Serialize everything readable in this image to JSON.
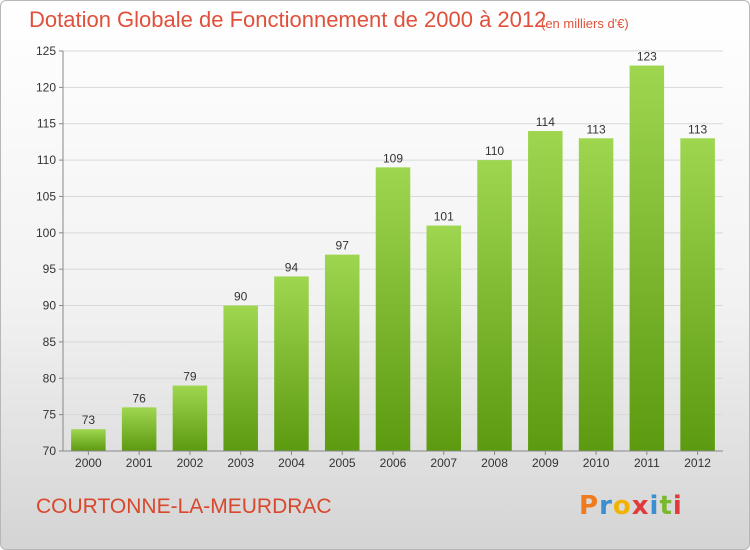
{
  "header": {
    "title": "Dotation Globale de Fonctionnement de 2000 à 2012",
    "subtitle": "(en milliers d'€)"
  },
  "footer": {
    "commune": "COURTONNE-LA-MEURDRAC",
    "logo_letters": [
      "P",
      "r",
      "o",
      "x",
      "i",
      "t",
      "i"
    ],
    "logo_colors": [
      "#f07a1e",
      "#3a8fd0",
      "#f0b400",
      "#e03a3a",
      "#3a8fd0",
      "#7ab82e",
      "#e03a3a"
    ]
  },
  "colors": {
    "bar_light": "#9fd650",
    "bar_dark": "#5c9a10",
    "grid": "#d9d9d9",
    "axis": "#888888"
  },
  "chart_data": {
    "type": "bar",
    "title": "Dotation Globale de Fonctionnement de 2000 à 2012",
    "subtitle": "(en milliers d'€)",
    "categories": [
      "2000",
      "2001",
      "2002",
      "2003",
      "2004",
      "2005",
      "2006",
      "2007",
      "2008",
      "2009",
      "2010",
      "2011",
      "2012"
    ],
    "values": [
      73,
      76,
      79,
      90,
      94,
      97,
      109,
      101,
      110,
      114,
      113,
      123,
      113
    ],
    "ylim": [
      70,
      125
    ],
    "yticks": [
      70,
      75,
      80,
      85,
      90,
      95,
      100,
      105,
      110,
      115,
      120,
      125
    ],
    "grid": true
  }
}
